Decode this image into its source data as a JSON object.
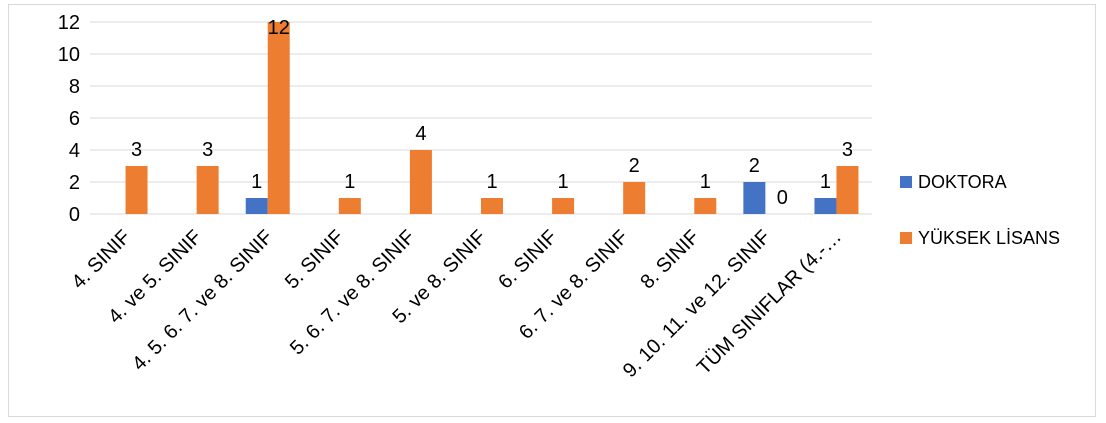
{
  "chart_data": {
    "type": "bar",
    "categories": [
      "4. SINIF",
      "4. ve 5. SINIF",
      "4. 5. 6. 7. ve 8. SINIF",
      "5. SINIF",
      "5. 6. 7. ve 8. SINIF",
      "5. ve 8. SINIF",
      "6. SINIF",
      "6. 7. ve 8. SINIF",
      "8. SINIF",
      "9. 10. 11. ve 12. SINIF",
      "TÜM SINIFLAR (4.-…"
    ],
    "series": [
      {
        "name": "DOKTORA",
        "color": "#4472C4",
        "values": [
          null,
          null,
          1,
          null,
          null,
          null,
          null,
          null,
          null,
          2,
          1
        ]
      },
      {
        "name": "YÜKSEK LİSANS",
        "color": "#ED7D31",
        "values": [
          3,
          3,
          12,
          1,
          4,
          1,
          1,
          2,
          1,
          0,
          3
        ]
      }
    ],
    "yticks": [
      "0",
      "2",
      "4",
      "6",
      "8",
      "10",
      "12"
    ],
    "ylim": [
      0,
      12
    ],
    "grid": true,
    "legend_position": "right",
    "gridline_color": "#d9d9d9",
    "title": "",
    "xlabel": "",
    "ylabel": ""
  }
}
